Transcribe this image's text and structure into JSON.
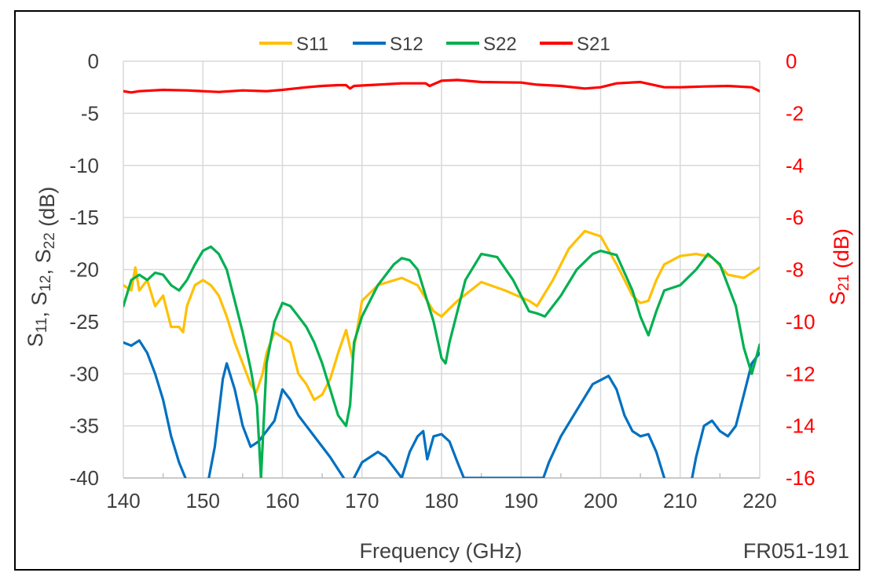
{
  "chart_data": {
    "type": "line",
    "xlabel": "Frequency (GHz)",
    "ylabel_left": "S11, S12, S22 (dB)",
    "ylabel_left_parts": [
      {
        "text": "S",
        "sub": false
      },
      {
        "text": "11",
        "sub": true
      },
      {
        "text": ", S",
        "sub": false
      },
      {
        "text": "12",
        "sub": true
      },
      {
        "text": ", S",
        "sub": false
      },
      {
        "text": "22",
        "sub": true
      },
      {
        "text": " (dB)",
        "sub": false
      }
    ],
    "ylabel_right": "S21 (dB)",
    "ylabel_right_parts": [
      {
        "text": "S",
        "sub": false
      },
      {
        "text": "21",
        "sub": true
      },
      {
        "text": " (dB)",
        "sub": false
      }
    ],
    "annotation": "FR051-191",
    "xlim": [
      140,
      220
    ],
    "xticks": [
      140,
      150,
      160,
      170,
      180,
      190,
      200,
      210,
      220
    ],
    "ylim_left": [
      -40,
      0
    ],
    "yticks_left": [
      0,
      -5,
      -10,
      -15,
      -20,
      -25,
      -30,
      -35,
      -40
    ],
    "ylim_right": [
      -16,
      0
    ],
    "yticks_right": [
      0,
      -2,
      -4,
      -6,
      -8,
      -10,
      -12,
      -14,
      -16
    ],
    "grid": true,
    "legend_position": "top-center",
    "series": [
      {
        "name": "S11",
        "color": "#ffc000",
        "axis": "left",
        "x": [
          140,
          141,
          141.5,
          142,
          143,
          144,
          145,
          146,
          147,
          147.5,
          148,
          149,
          150,
          151,
          152,
          153,
          154,
          155,
          156,
          156.7,
          157.5,
          158,
          159,
          160,
          161,
          162,
          163,
          164,
          165,
          166,
          167,
          168,
          168.8,
          170,
          172,
          175,
          177,
          179,
          180,
          182,
          185,
          188,
          191,
          192,
          194,
          196,
          198,
          200,
          202,
          204,
          205,
          206,
          207,
          208,
          210,
          212,
          214,
          216,
          218,
          220
        ],
        "y": [
          -21.5,
          -22,
          -19.8,
          -22,
          -21,
          -23.5,
          -22.5,
          -25.5,
          -25.5,
          -26,
          -23.5,
          -21.5,
          -21,
          -21.5,
          -22.5,
          -24.5,
          -27,
          -29,
          -31,
          -31.8,
          -30,
          -28,
          -26,
          -26.5,
          -27,
          -30,
          -31,
          -32.5,
          -32,
          -30.5,
          -28,
          -25.8,
          -28.5,
          -23,
          -21.5,
          -20.8,
          -21.5,
          -24,
          -24.5,
          -23,
          -21.2,
          -22,
          -23,
          -23.5,
          -21,
          -18,
          -16.3,
          -16.8,
          -19.5,
          -22.5,
          -23.2,
          -23,
          -21,
          -19.5,
          -18.7,
          -18.5,
          -18.8,
          -20.5,
          -20.8,
          -19.8
        ]
      },
      {
        "name": "S12",
        "color": "#0070c0",
        "axis": "left",
        "x": [
          140,
          141,
          142,
          143,
          144,
          145,
          146,
          147,
          147.8,
          148.5,
          150.5,
          151.5,
          152.5,
          153,
          154,
          155,
          156,
          157,
          158,
          159,
          160,
          161,
          162,
          164,
          166,
          167.7,
          168.5,
          169,
          170,
          171,
          172,
          173,
          174,
          175,
          176,
          177,
          177.7,
          178.2,
          179,
          180,
          181,
          182,
          182.8,
          192.8,
          193.5,
          195,
          197,
          199,
          201,
          202,
          203,
          204,
          205,
          206,
          207,
          208,
          208.5,
          210.8,
          211.5,
          212,
          213,
          214,
          215,
          216,
          217,
          218,
          219,
          220
        ],
        "y": [
          -27,
          -27.3,
          -26.8,
          -28,
          -30,
          -32.5,
          -36,
          -38.5,
          -40,
          -41,
          -41,
          -37,
          -30.5,
          -29,
          -31.5,
          -35,
          -37,
          -36.5,
          -35.5,
          -34.5,
          -31.5,
          -32.5,
          -34,
          -36,
          -38,
          -40,
          -41,
          -40,
          -38.5,
          -38,
          -37.5,
          -38,
          -39,
          -40,
          -37.5,
          -36,
          -35.5,
          -38.2,
          -36,
          -35.8,
          -36.5,
          -38.5,
          -40,
          -40,
          -38.5,
          -36,
          -33.5,
          -31,
          -30.2,
          -31.5,
          -34,
          -35.5,
          -36,
          -35.8,
          -37.5,
          -40,
          -41,
          -41,
          -40,
          -38,
          -35,
          -34.5,
          -35.5,
          -36,
          -35,
          -32,
          -29,
          -28
        ]
      },
      {
        "name": "S22",
        "color": "#00b050",
        "axis": "left",
        "x": [
          140,
          141,
          142,
          143,
          144,
          145,
          146,
          147,
          148,
          149,
          150,
          151,
          152,
          153,
          154,
          155,
          156,
          156.8,
          157.3,
          158,
          159,
          160,
          161,
          162,
          163,
          164,
          165,
          166,
          167,
          168,
          168.5,
          169,
          170,
          172,
          174,
          175,
          176,
          177,
          179,
          180,
          180.5,
          181,
          183,
          185,
          187,
          189,
          191,
          192,
          193,
          195,
          197,
          199,
          200,
          201,
          202,
          204,
          205,
          206,
          207,
          208,
          210,
          212,
          213.5,
          215,
          217,
          218,
          219,
          220
        ],
        "y": [
          -23.5,
          -21,
          -20.5,
          -21,
          -20.3,
          -20.5,
          -21.5,
          -22,
          -21,
          -19.5,
          -18.2,
          -17.8,
          -18.5,
          -20,
          -23,
          -26,
          -29.5,
          -33,
          -40,
          -29,
          -25,
          -23.2,
          -23.5,
          -24.5,
          -25.5,
          -27,
          -29,
          -31.5,
          -34,
          -35,
          -33,
          -27,
          -24.5,
          -21.5,
          -19.5,
          -18.9,
          -19.1,
          -20,
          -25,
          -28.5,
          -29,
          -27,
          -21,
          -18.5,
          -18.8,
          -21,
          -24,
          -24.2,
          -24.5,
          -22.5,
          -20,
          -18.5,
          -18.2,
          -18.4,
          -18.6,
          -22,
          -24.5,
          -26.3,
          -24,
          -22,
          -21.5,
          -20,
          -18.5,
          -19.5,
          -23.5,
          -27.5,
          -30,
          -27.2
        ]
      },
      {
        "name": "S21",
        "color": "#ff0000",
        "axis": "right",
        "x": [
          140,
          141,
          142,
          145,
          148,
          150,
          152,
          155,
          158,
          160,
          163,
          165,
          167,
          168,
          168.5,
          169,
          172,
          175,
          178,
          178.5,
          180,
          182,
          185,
          190,
          192,
          195,
          198,
          200,
          202,
          205,
          208,
          210,
          213,
          216,
          219,
          220
        ],
        "y": [
          -1.15,
          -1.2,
          -1.15,
          -1.1,
          -1.12,
          -1.15,
          -1.18,
          -1.12,
          -1.15,
          -1.1,
          -1.0,
          -0.95,
          -0.92,
          -0.92,
          -1.05,
          -0.95,
          -0.9,
          -0.85,
          -0.85,
          -0.95,
          -0.75,
          -0.72,
          -0.8,
          -0.82,
          -0.9,
          -0.95,
          -1.05,
          -1.0,
          -0.85,
          -0.8,
          -1.0,
          -1.0,
          -0.97,
          -0.95,
          -1.0,
          -1.15
        ]
      }
    ]
  }
}
